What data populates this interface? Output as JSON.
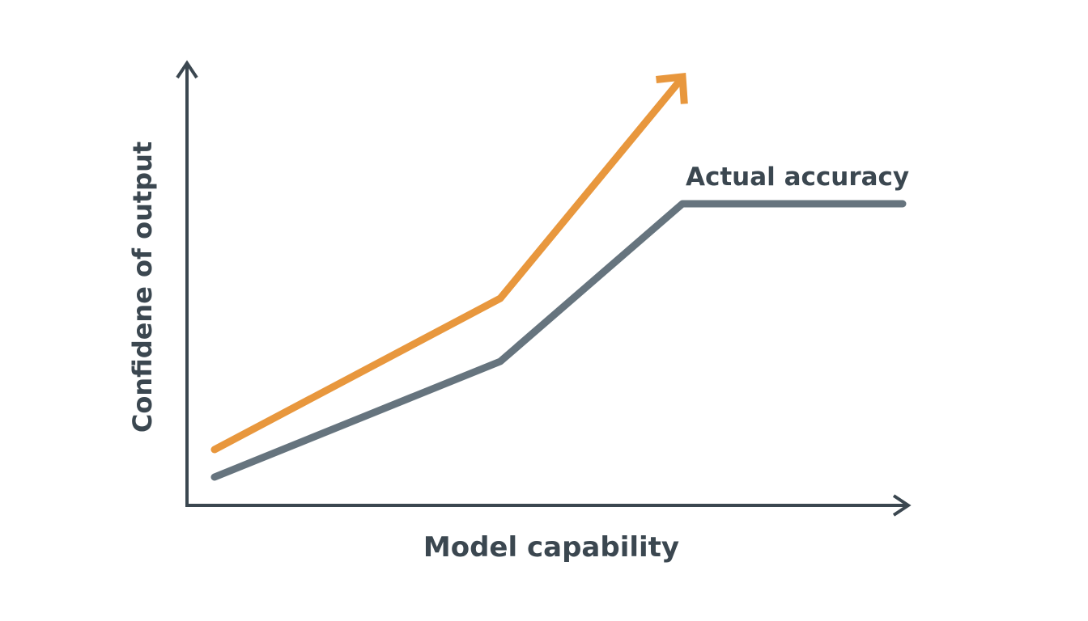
{
  "axes": {
    "y_label": "Confidene of output",
    "x_label": "Model capability"
  },
  "lines": {
    "actual_label": "Actual accuracy"
  }
}
